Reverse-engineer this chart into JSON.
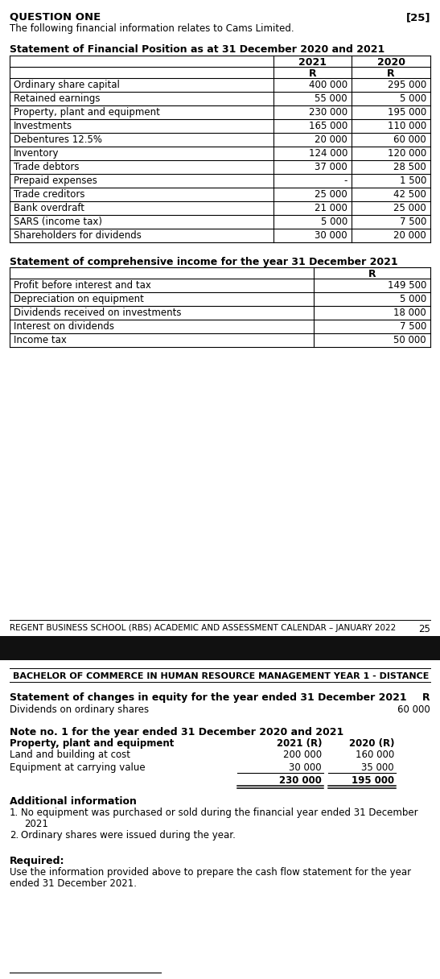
{
  "title": "QUESTION ONE",
  "title_mark": "[25]",
  "subtitle": "The following financial information relates to Cams Limited.",
  "section1_title": "Statement of Financial Position as at 31 December 2020 and 2021",
  "sfp_rows": [
    [
      "Ordinary share capital",
      "400 000",
      "295 000"
    ],
    [
      "Retained earnings",
      "55 000",
      "5 000"
    ],
    [
      "Property, plant and equipment",
      "230 000",
      "195 000"
    ],
    [
      "Investments",
      "165 000",
      "110 000"
    ],
    [
      "Debentures 12.5%",
      "20 000",
      "60 000"
    ],
    [
      "Inventory",
      "124 000",
      "120 000"
    ],
    [
      "Trade debtors",
      "37 000",
      "28 500"
    ],
    [
      "Prepaid expenses",
      "-",
      "1 500"
    ],
    [
      "Trade creditors",
      "25 000",
      "42 500"
    ],
    [
      "Bank overdraft",
      "21 000",
      "25 000"
    ],
    [
      "SARS (income tax)",
      "5 000",
      "7 500"
    ],
    [
      "Shareholders for dividends",
      "30 000",
      "20 000"
    ]
  ],
  "section2_title": "Statement of comprehensive income for the year 31 December 2021",
  "sci_rows": [
    [
      "Profit before interest and tax",
      "149 500"
    ],
    [
      "Depreciation on equipment",
      "5 000"
    ],
    [
      "Dividends received on investments",
      "18 000"
    ],
    [
      "Interest on dividends",
      "7 500"
    ],
    [
      "Income tax",
      "50 000"
    ]
  ],
  "footer_text": "REGENT BUSINESS SCHOOL (RBS) ACADEMIC AND ASSESSMENT CALENDAR – JANUARY 2022",
  "footer_num": "25",
  "page2_header": "BACHELOR OF COMMERCE IN HUMAN RESOURCE MANAGEMENT YEAR 1 - DISTANCE",
  "section3_title": "Statement of changes in equity for the year ended 31 December 2021",
  "section3_r": "R",
  "changes_row": [
    "Dividends on ordinary shares",
    "60 000"
  ],
  "note_title": "Note no. 1 for the year ended 31 December 2020 and 2021",
  "ppe_header": [
    "Property, plant and equipment",
    "2021 (R)",
    "2020 (R)"
  ],
  "ppe_rows": [
    [
      "Land and building at cost",
      "200 000",
      "160 000"
    ],
    [
      "Equipment at carrying value",
      "30 000",
      "35 000"
    ]
  ],
  "ppe_totals": [
    "",
    "230 000",
    "195 000"
  ],
  "additional_title": "Additional information",
  "additional_items": [
    [
      "No equipment was purchased or sold during the financial year ended 31 December",
      "2021"
    ],
    [
      "Ordinary shares were issued during the year."
    ]
  ],
  "required_title": "Required:",
  "required_text": [
    "Use the information provided above to prepare the cash flow statement for the year",
    "ended 31 December 2021."
  ],
  "bg_color": "#ffffff",
  "black_bar_color": "#111111"
}
